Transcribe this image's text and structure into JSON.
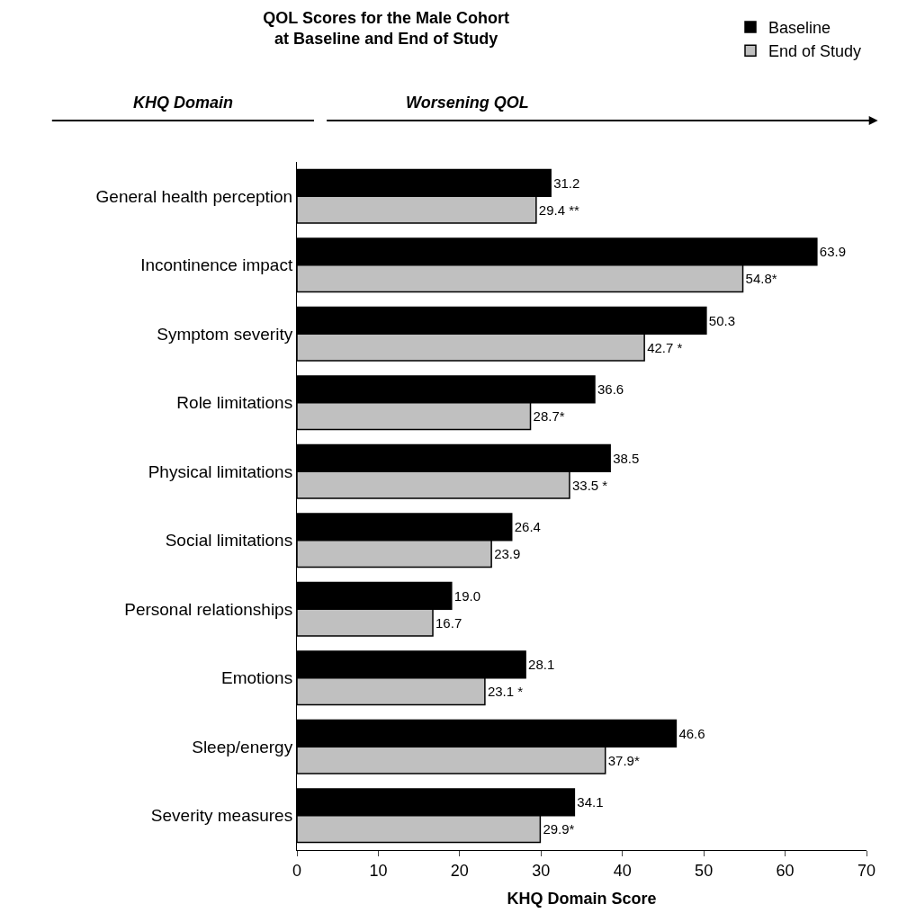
{
  "chart_data": {
    "type": "bar",
    "orientation": "horizontal",
    "title": "QOL Scores for the Male Cohort\nat Baseline and End of Study",
    "xlabel": "KHQ Domain Score",
    "categories": [
      "General health perception",
      "Incontinence impact",
      "Symptom severity",
      "Role limitations",
      "Physical limitations",
      "Social limitations",
      "Personal relationships",
      "Emotions",
      "Sleep/energy",
      "Severity measures"
    ],
    "series": [
      {
        "name": "Baseline",
        "color": "#000000",
        "values": [
          31.2,
          63.9,
          50.3,
          36.6,
          38.5,
          26.4,
          19.0,
          28.1,
          46.6,
          34.1
        ],
        "value_labels": [
          "31.2",
          "63.9",
          "50.3",
          "36.6",
          "38.5",
          "26.4",
          "19.0",
          "28.1",
          "46.6",
          "34.1"
        ]
      },
      {
        "name": "End of Study",
        "color": "#c0c0c0",
        "values": [
          29.4,
          54.8,
          42.7,
          28.7,
          33.5,
          23.9,
          16.7,
          23.1,
          37.9,
          29.9
        ],
        "value_labels": [
          "29.4 **",
          "54.8*",
          "42.7 *",
          "28.7*",
          "33.5 *",
          "23.9",
          "16.7",
          "23.1 *",
          "37.9*",
          "29.9*"
        ]
      }
    ],
    "xlim": [
      0,
      70
    ],
    "xticks": [
      0,
      10,
      20,
      30,
      40,
      50,
      60,
      70
    ],
    "legend": "top right",
    "annotations": [
      "KHQ Domain",
      "Worsening QOL"
    ]
  }
}
